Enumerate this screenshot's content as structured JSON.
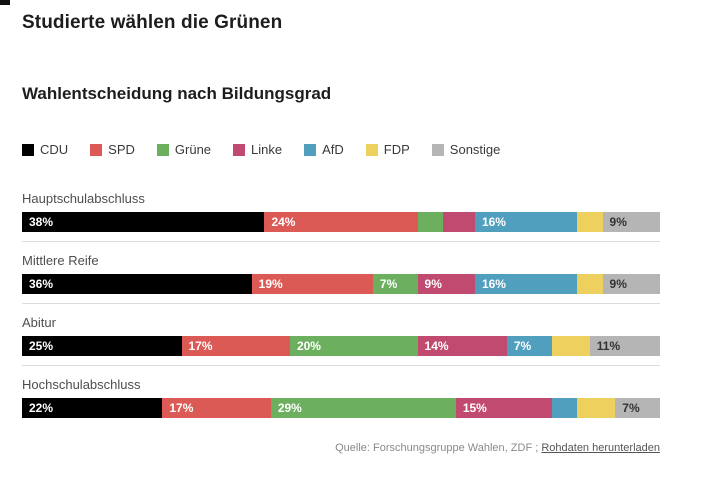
{
  "page": {
    "title": "Studierte wählen die Grünen",
    "subtitle": "Wahlentscheidung nach Bildungsgrad",
    "source_prefix": "Quelle: Forschungsgruppe Wahlen, ZDF ;",
    "source_link": "Rohdaten herunterladen"
  },
  "chart_data": {
    "type": "bar",
    "orientation": "horizontal-stacked",
    "title": "Studierte wählen die Grünen",
    "subtitle": "Wahlentscheidung nach Bildungsgrad",
    "legend": [
      "CDU",
      "SPD",
      "Grüne",
      "Linke",
      "AfD",
      "FDP",
      "Sonstige"
    ],
    "legend_position": "top",
    "grid": false,
    "xlim": [
      0,
      100
    ],
    "colors": {
      "CDU": "#000000",
      "SPD": "#dc5a55",
      "Grüne": "#6cb05f",
      "Linke": "#c04a70",
      "AfD": "#509fbe",
      "FDP": "#eed05e",
      "Sonstige": "#b5b5b5"
    },
    "dark_label_parties": [
      "FDP",
      "Sonstige"
    ],
    "categories": [
      "Hauptschulabschluss",
      "Mittlere Reife",
      "Abitur",
      "Hochschulabschluss"
    ],
    "series": [
      {
        "name": "CDU",
        "values": [
          38,
          36,
          25,
          22
        ],
        "labels": [
          "38%",
          "36%",
          "25%",
          "22%"
        ]
      },
      {
        "name": "SPD",
        "values": [
          24,
          19,
          17,
          17
        ],
        "labels": [
          "24%",
          "19%",
          "17%",
          "17%"
        ]
      },
      {
        "name": "Grüne",
        "values": [
          4,
          7,
          20,
          29
        ],
        "labels": [
          "",
          "7%",
          "20%",
          "29%"
        ]
      },
      {
        "name": "Linke",
        "values": [
          5,
          9,
          14,
          15
        ],
        "labels": [
          "",
          "9%",
          "14%",
          "15%"
        ]
      },
      {
        "name": "AfD",
        "values": [
          16,
          16,
          7,
          4
        ],
        "labels": [
          "16%",
          "16%",
          "7%",
          ""
        ]
      },
      {
        "name": "FDP",
        "values": [
          4,
          4,
          6,
          6
        ],
        "labels": [
          "",
          "",
          "",
          ""
        ]
      },
      {
        "name": "Sonstige",
        "values": [
          9,
          9,
          11,
          7
        ],
        "labels": [
          "9%",
          "9%",
          "11%",
          "7%"
        ]
      }
    ]
  }
}
